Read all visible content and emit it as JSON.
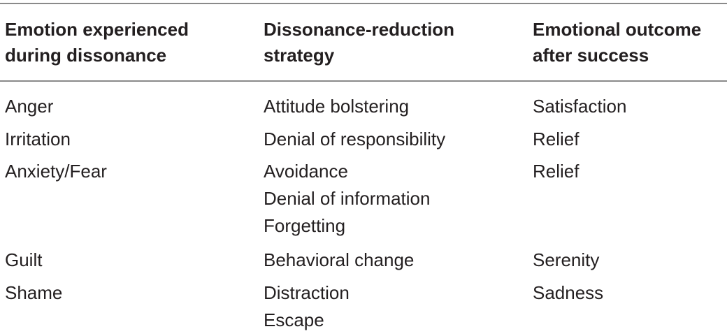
{
  "table": {
    "headers": [
      [
        "Emotion experienced",
        "during dissonance"
      ],
      [
        "Dissonance-reduction",
        "strategy"
      ],
      [
        "Emotional outcome",
        "after success"
      ]
    ],
    "rows": [
      {
        "emotion": [
          "Anger"
        ],
        "strategy": [
          "Attitude bolstering"
        ],
        "outcome": [
          "Satisfaction"
        ]
      },
      {
        "emotion": [
          "Irritation"
        ],
        "strategy": [
          "Denial of responsibility"
        ],
        "outcome": [
          "Relief"
        ]
      },
      {
        "emotion": [
          "Anxiety/Fear"
        ],
        "strategy": [
          "Avoidance",
          "Denial of information",
          "Forgetting"
        ],
        "outcome": [
          "Relief"
        ]
      },
      {
        "emotion": [
          "Guilt"
        ],
        "strategy": [
          "Behavioral change"
        ],
        "outcome": [
          "Serenity"
        ]
      },
      {
        "emotion": [
          "Shame"
        ],
        "strategy": [
          "Distraction",
          "Escape"
        ],
        "outcome": [
          "Sadness"
        ]
      }
    ]
  }
}
